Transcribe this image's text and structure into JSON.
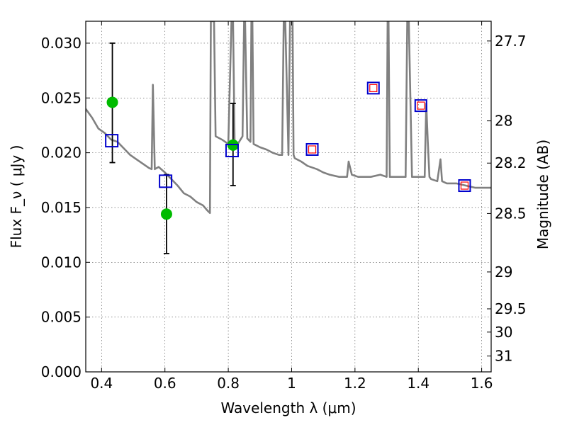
{
  "chart_data": {
    "type": "scatter",
    "title": "",
    "xlabel": "Wavelength  λ (μm)",
    "ylabel": "Flux  F_ν  ( μJy )",
    "ylabel_right": "Magnitude (AB)",
    "xlim": [
      0.35,
      1.63
    ],
    "ylim": [
      0.0,
      0.032
    ],
    "grid": true,
    "x_ticks": [
      0.4,
      0.6,
      0.8,
      1.0,
      1.2,
      1.4,
      1.6
    ],
    "x_tick_labels": [
      "0.4",
      "0.6",
      "0.8",
      "1",
      "1.2",
      "1.4",
      "1.6"
    ],
    "y_ticks": [
      0.0,
      0.005,
      0.01,
      0.015,
      0.02,
      0.025,
      0.03
    ],
    "y_tick_labels": [
      "0.000",
      "0.005",
      "0.010",
      "0.015",
      "0.020",
      "0.025",
      "0.030"
    ],
    "right_ticks": [
      {
        "label": "27.7",
        "mag": 27.7
      },
      {
        "label": "28",
        "mag": 28.0
      },
      {
        "label": "28.2",
        "mag": 28.2
      },
      {
        "label": "28.5",
        "mag": 28.5
      },
      {
        "label": "29",
        "mag": 29.0
      },
      {
        "label": "29.5",
        "mag": 29.5
      },
      {
        "label": "30",
        "mag": 30.0
      },
      {
        "label": "31",
        "mag": 31.0
      }
    ],
    "series": [
      {
        "kind": "line",
        "color": "#808080",
        "x": [
          0.35,
          0.37,
          0.39,
          0.41,
          0.43,
          0.45,
          0.47,
          0.49,
          0.51,
          0.53,
          0.55,
          0.558,
          0.562,
          0.568,
          0.58,
          0.6,
          0.62,
          0.64,
          0.66,
          0.68,
          0.7,
          0.72,
          0.735,
          0.742,
          0.745,
          0.748,
          0.75,
          0.755,
          0.76,
          0.78,
          0.8,
          0.81,
          0.815,
          0.82,
          0.83,
          0.845,
          0.85,
          0.853,
          0.86,
          0.87,
          0.873,
          0.876,
          0.88,
          0.9,
          0.92,
          0.94,
          0.96,
          0.97,
          0.975,
          0.98,
          0.99,
          0.995,
          1.0,
          1.003,
          1.006,
          1.01,
          1.03,
          1.05,
          1.08,
          1.1,
          1.12,
          1.15,
          1.175,
          1.18,
          1.19,
          1.21,
          1.25,
          1.28,
          1.3,
          1.303,
          1.306,
          1.31,
          1.34,
          1.36,
          1.365,
          1.37,
          1.38,
          1.4,
          1.42,
          1.425,
          1.43,
          1.435,
          1.44,
          1.46,
          1.47,
          1.475,
          1.49,
          1.52,
          1.55,
          1.58,
          1.6,
          1.63
        ],
        "y": [
          0.024,
          0.0232,
          0.0222,
          0.0218,
          0.0212,
          0.021,
          0.0204,
          0.0198,
          0.0194,
          0.019,
          0.0186,
          0.0185,
          0.0262,
          0.0185,
          0.0187,
          0.0182,
          0.0176,
          0.017,
          0.0163,
          0.016,
          0.0155,
          0.0152,
          0.0147,
          0.0145,
          0.032,
          0.032,
          0.032,
          0.032,
          0.0215,
          0.0212,
          0.0208,
          0.032,
          0.032,
          0.021,
          0.0208,
          0.0215,
          0.032,
          0.032,
          0.0213,
          0.021,
          0.032,
          0.032,
          0.0208,
          0.0205,
          0.0203,
          0.02,
          0.0198,
          0.0198,
          0.032,
          0.032,
          0.0198,
          0.032,
          0.032,
          0.032,
          0.0198,
          0.0195,
          0.0192,
          0.0188,
          0.0185,
          0.0182,
          0.018,
          0.0178,
          0.0178,
          0.0192,
          0.018,
          0.0178,
          0.0178,
          0.018,
          0.0178,
          0.032,
          0.032,
          0.0178,
          0.0178,
          0.0178,
          0.032,
          0.032,
          0.0178,
          0.0178,
          0.0178,
          0.0245,
          0.021,
          0.0178,
          0.0176,
          0.0174,
          0.0194,
          0.0174,
          0.0172,
          0.0172,
          0.017,
          0.0168,
          0.0168,
          0.0168
        ]
      },
      {
        "kind": "errorbar",
        "color": "#00bb00",
        "points": [
          {
            "x": 0.434,
            "y": 0.0246,
            "ylo": 0.0191,
            "yhi": 0.03
          },
          {
            "x": 0.605,
            "y": 0.0144,
            "ylo": 0.0108,
            "yhi": 0.018
          },
          {
            "x": 0.815,
            "y": 0.0207,
            "ylo": 0.017,
            "yhi": 0.0245
          }
        ]
      },
      {
        "kind": "blue-squares",
        "color": "#0000cc",
        "x": [
          0.432,
          0.602,
          0.812
        ],
        "y": [
          0.0211,
          0.0174,
          0.0202
        ]
      },
      {
        "kind": "red-blue-squares",
        "color": "#0000cc",
        "inner_color": "#ff0000",
        "x": [
          1.065,
          1.258,
          1.408,
          1.546
        ],
        "y": [
          0.0203,
          0.0259,
          0.0243,
          0.017
        ]
      }
    ]
  }
}
